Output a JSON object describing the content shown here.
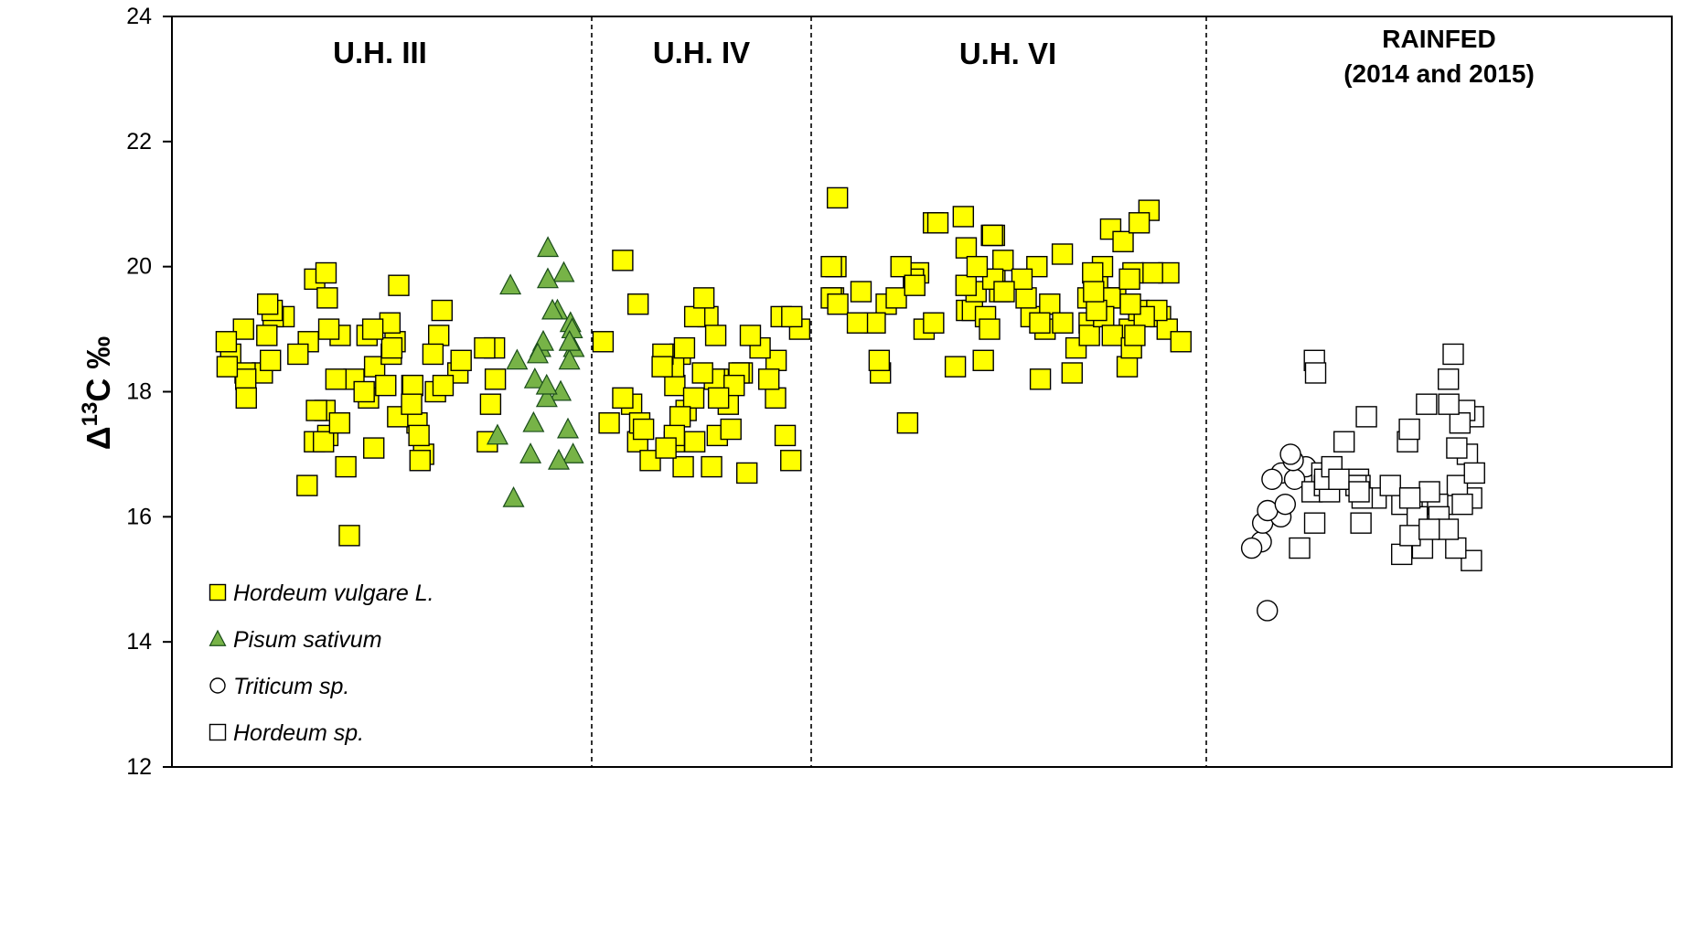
{
  "chart_data": {
    "type": "scatter",
    "title": "",
    "ylabel_prefix": "Δ",
    "ylabel_sup": "13",
    "ylabel_suffix": "C ‰",
    "ylim": [
      12,
      24
    ],
    "yticks": [
      12,
      14,
      16,
      18,
      20,
      22,
      24
    ],
    "grid": false,
    "legend_position": "bottom-left",
    "groups": [
      {
        "label_lines": [
          "U.H. III"
        ]
      },
      {
        "label_lines": [
          "U.H. IV"
        ]
      },
      {
        "label_lines": [
          "U.H. VI"
        ]
      },
      {
        "label_lines": [
          "RAINFED",
          "(2014 and 2015)"
        ]
      }
    ],
    "legend": [
      {
        "label": "Hordeum vulgare L.",
        "marker": "square",
        "fill": "#ffff00",
        "stroke": "#000000"
      },
      {
        "label": "Pisum sativum",
        "marker": "triangle",
        "fill": "#77b347",
        "stroke": "#1a4d1a"
      },
      {
        "label": "Triticum sp.",
        "marker": "circle",
        "fill": "#ffffff",
        "stroke": "#000000"
      },
      {
        "label": "Hordeum sp.",
        "marker": "square",
        "fill": "#ffffff",
        "stroke": "#000000"
      }
    ],
    "series": [
      {
        "name": "Hordeum vulgare L.",
        "group": 0,
        "values": [
          18.8,
          18.7,
          17.9,
          18.1,
          18.3,
          17.2,
          17.3,
          19.3,
          19.2,
          18.6,
          18.9,
          18.4,
          18.2,
          17.5,
          19.8,
          18.6,
          18.5,
          18.0,
          17.8,
          18.9,
          18.7,
          17.7,
          17.6,
          17.2,
          18.2,
          19.0,
          18.8,
          18.1,
          16.5,
          16.8,
          18.7,
          18.3,
          17.8,
          18.0,
          17.2,
          19.9,
          19.2,
          18.5,
          17.5,
          18.3,
          17.0,
          16.9,
          19.3,
          19.0,
          18.8,
          18.6,
          18.2,
          19.5,
          18.9,
          19.1,
          15.7,
          18.2,
          17.7,
          17.9,
          18.9,
          18.6,
          18.1,
          18.4,
          17.1,
          19.7,
          19.4,
          19.0,
          17.3,
          18.1
        ]
      },
      {
        "name": "Pisum sativum",
        "group": 0,
        "values": [
          20.3,
          19.3,
          19.1,
          18.5,
          18.2,
          19.9,
          19.7,
          19.8,
          18.7,
          18.8,
          18.6,
          17.0,
          16.3,
          17.3,
          17.5,
          18.0,
          19.3,
          18.7,
          18.5,
          17.0,
          17.9,
          19.0,
          18.1,
          17.4,
          16.9,
          18.8
        ]
      },
      {
        "name": "Hordeum vulgare L.",
        "group": 1,
        "values": [
          18.3,
          18.2,
          18.1,
          17.9,
          17.8,
          18.6,
          18.8,
          19.2,
          17.3,
          17.2,
          16.8,
          16.8,
          19.0,
          18.4,
          17.8,
          17.5,
          17.3,
          17.2,
          19.2,
          19.2,
          18.3,
          18.2,
          18.1,
          18.5,
          17.5,
          18.7,
          17.9,
          18.3,
          17.7,
          17.4,
          16.9,
          16.9,
          18.9,
          18.7,
          17.9,
          17.6,
          17.2,
          17.4,
          16.7,
          19.5,
          18.2,
          18.6,
          18.9,
          17.3,
          19.4,
          20.1,
          17.9,
          17.1,
          19.2,
          18.4
        ]
      },
      {
        "name": "Hordeum vulgare L.",
        "group": 2,
        "values": [
          19.5,
          19.3,
          20.6,
          19.8,
          19.5,
          19.2,
          20.4,
          19.3,
          19.0,
          19.5,
          19.2,
          19.0,
          19.8,
          18.7,
          19.5,
          19.9,
          19.2,
          19.0,
          19.3,
          20.1,
          19.1,
          19.4,
          18.3,
          18.4,
          20.0,
          20.2,
          19.5,
          19.3,
          18.8,
          19.6,
          19.9,
          20.7,
          19.5,
          19.8,
          19.5,
          19.9,
          20.5,
          20.3,
          19.2,
          18.9,
          20.9,
          19.0,
          19.4,
          18.4,
          19.2,
          20.0,
          19.4,
          19.1,
          19.9,
          19.1,
          18.5,
          20.0,
          21.1,
          19.5,
          19.6,
          19.6,
          20.5,
          20.7,
          20.5,
          19.7,
          19.0,
          19.1,
          18.2,
          20.0,
          19.8,
          19.1,
          19.8,
          20.7,
          18.9,
          18.3,
          18.7,
          19.8,
          19.5,
          19.7,
          20.0,
          19.3,
          19.1,
          20.8,
          18.5,
          18.9,
          19.9,
          19.6,
          19.4,
          20.0,
          17.5,
          19.6
        ]
      },
      {
        "name": "Triticum sp.",
        "group": 3,
        "values": [
          16.8,
          15.6,
          15.9,
          15.5,
          16.0,
          16.7,
          16.6,
          16.1,
          16.9,
          16.6,
          17.0,
          14.5,
          16.2
        ]
      },
      {
        "name": "Hordeum sp.",
        "group": 3,
        "values": [
          16.2,
          16.3,
          17.2,
          16.3,
          15.9,
          15.3,
          16.3,
          16.7,
          17.0,
          16.5,
          16.2,
          15.7,
          17.2,
          16.6,
          16.4,
          16.0,
          16.5,
          15.5,
          16.2,
          16.5,
          16.0,
          16.5,
          15.5,
          16.4,
          15.9,
          16.3,
          17.6,
          17.8,
          18.5,
          18.2,
          17.7,
          17.6,
          17.1,
          18.6,
          18.3,
          17.5,
          17.4,
          17.8,
          16.4,
          16.6,
          16.7,
          16.8,
          15.4,
          16.5,
          16.2,
          15.8,
          16.3,
          16.6,
          15.7,
          16.4,
          15.8,
          15.5
        ]
      }
    ]
  }
}
